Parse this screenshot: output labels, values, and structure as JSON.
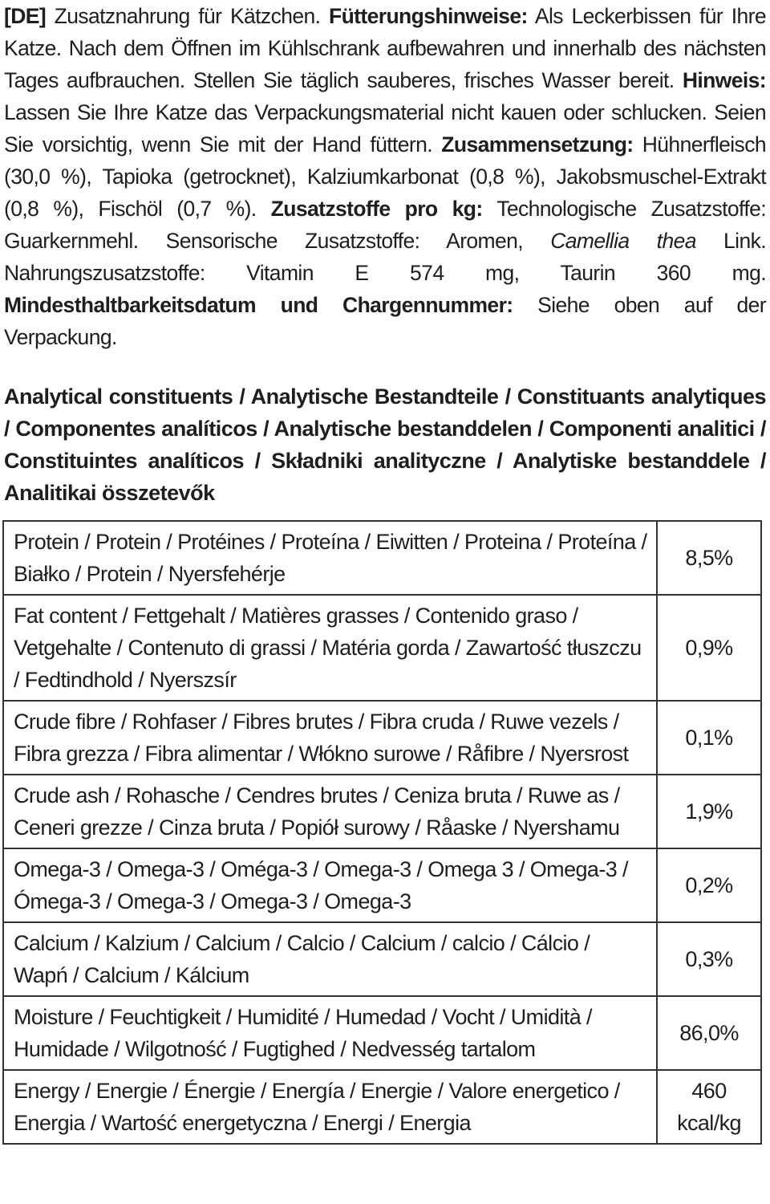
{
  "text": {
    "runs": [
      {
        "text": "[DE]",
        "bold": true
      },
      {
        "text": " Zusatznahrung für Kätzchen. "
      },
      {
        "text": "Fütterungshinweise:",
        "bold": true
      },
      {
        "text": " Als Leckerbissen für Ihre Katze. Nach dem Öffnen im Kühlschrank aufbewahren und innerhalb des nächsten Tages aufbrauchen. Stellen Sie täglich sauberes, frisches Wasser bereit. "
      },
      {
        "text": "Hinweis:",
        "bold": true
      },
      {
        "text": " Lassen Sie Ihre Katze das Verpackungsmaterial nicht kauen oder schlucken. Seien Sie vorsichtig, wenn Sie mit der Hand füttern. "
      },
      {
        "text": "Zusammensetzung:",
        "bold": true
      },
      {
        "text": " Hühnerfleisch (30,0 %), Tapioka (getrocknet), Kalziumkarbonat (0,8 %), Jakobsmuschel-Extrakt (0,8 %), Fischöl (0,7 %). "
      },
      {
        "text": "Zusatzstoffe pro kg:",
        "bold": true
      },
      {
        "text": " Technologische Zusatzstoffe: Guarkernmehl. Sensorische Zusatzstoffe: Aromen, "
      },
      {
        "text": "Camellia thea",
        "italic": true
      },
      {
        "text": " Link. Nahrungszusatzstoffe: Vitamin E 574 mg, Taurin 360 mg. "
      },
      {
        "text": "Mindesthaltbarkeitsdatum und Chargennummer:",
        "bold": true
      },
      {
        "text": " Siehe oben auf der Verpackung."
      }
    ]
  },
  "heading": "Analytical constituents / Analytische Bestandteile / Constituants analytiques / Componentes analíticos / Analytische bestanddelen / Componenti analitici / Constituintes analíticos / Składniki analityczne / Analytiske bestanddele / Analitikai összetevők",
  "table": {
    "rows": [
      [
        "Protein / Protein / Protéines / Proteína / Eiwitten / Proteina / Proteína / Białko / Protein / Nyersfehérje",
        "8,5%"
      ],
      [
        "Fat content / Fettgehalt / Matières grasses / Contenido graso / Vetgehalte / Contenuto di grassi / Matéria gorda / Zawartość tłuszczu / Fedtindhold / Nyerszsír",
        "0,9%"
      ],
      [
        "Crude fibre / Rohfaser / Fibres brutes / Fibra cruda / Ruwe vezels / Fibra grezza / Fibra alimentar / Włókno surowe / Råfibre / Nyersrost",
        "0,1%"
      ],
      [
        "Crude ash / Rohasche / Cendres brutes / Ceniza bruta / Ruwe as / Ceneri grezze / Cinza bruta / Popiół surowy / Råaske / Nyershamu",
        "1,9%"
      ],
      [
        "Omega-3 / Omega-3 / Oméga-3 / Omega-3 / Omega 3 / Omega-3 / Ómega-3 / Omega-3 / Omega-3 / Omega-3",
        "0,2%"
      ],
      [
        "Calcium / Kalzium / Calcium / Calcio / Calcium / calcio / Cálcio / Wapń / Calcium / Kálcium",
        "0,3%"
      ],
      [
        "Moisture / Feuchtigkeit / Humidité / Humedad / Vocht / Umidità / Humidade / Wilgotność / Fugtighed / Nedvesség tartalom",
        "86,0%"
      ],
      [
        "Energy / Energie / Énergie / Energía / Energie / Valore energetico / Energia / Wartość energetyczna / Energi / Energia",
        "460 kcal/kg"
      ]
    ]
  }
}
